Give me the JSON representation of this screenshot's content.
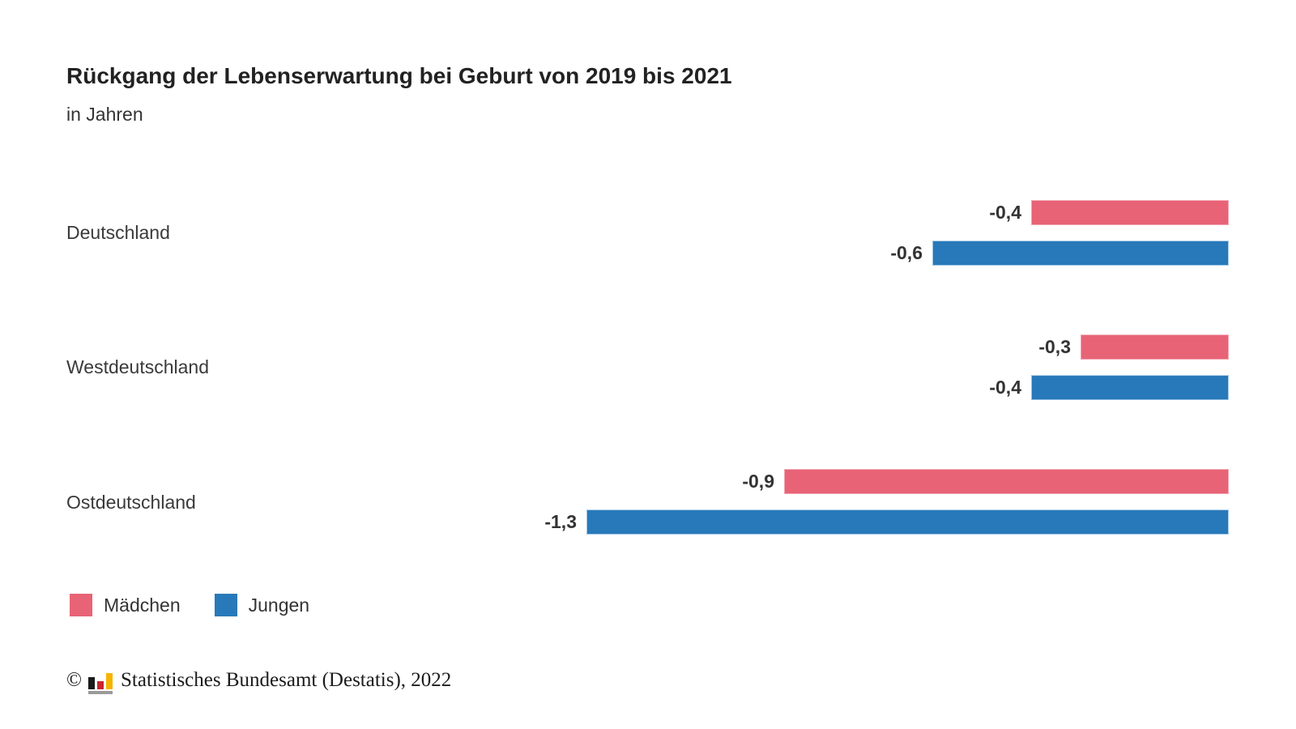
{
  "header": {
    "title": "Rückgang der Lebenserwartung bei Geburt von 2019 bis 2021",
    "subtitle": "in Jahren"
  },
  "chart_data": {
    "type": "bar",
    "orientation": "horizontal",
    "title": "Rückgang der Lebenserwartung bei Geburt von 2019 bis 2021",
    "unit_label": "in Jahren",
    "categories": [
      "Deutschland",
      "Westdeutschland",
      "Ostdeutschland"
    ],
    "series": [
      {
        "name": "Mädchen",
        "color": "#e86376",
        "values": [
          -0.4,
          -0.3,
          -0.9
        ],
        "labels": [
          "-0,4",
          "-0,3",
          "-0,9"
        ]
      },
      {
        "name": "Jungen",
        "color": "#2879b9",
        "values": [
          -0.6,
          -0.4,
          -1.3
        ],
        "labels": [
          "-0,6",
          "-0,4",
          "-1,3"
        ]
      }
    ],
    "xlim": [
      -1.4,
      0
    ],
    "value_anchor": "right",
    "grid": false,
    "axes_visible": false,
    "legend_position": "bottom-left"
  },
  "legend": {
    "items": [
      {
        "label": "Mädchen",
        "color": "#e86376"
      },
      {
        "label": "Jungen",
        "color": "#2879b9"
      }
    ]
  },
  "footer": {
    "copyright_symbol": "©",
    "source": "Statistisches Bundesamt (Destatis), 2022",
    "logo_icon": "destatis-bar-chart-icon",
    "logo_colors": {
      "black": "#1a1a1a",
      "red": "#c9252d",
      "gold": "#f5b400",
      "gray": "#9b9b9b"
    }
  }
}
